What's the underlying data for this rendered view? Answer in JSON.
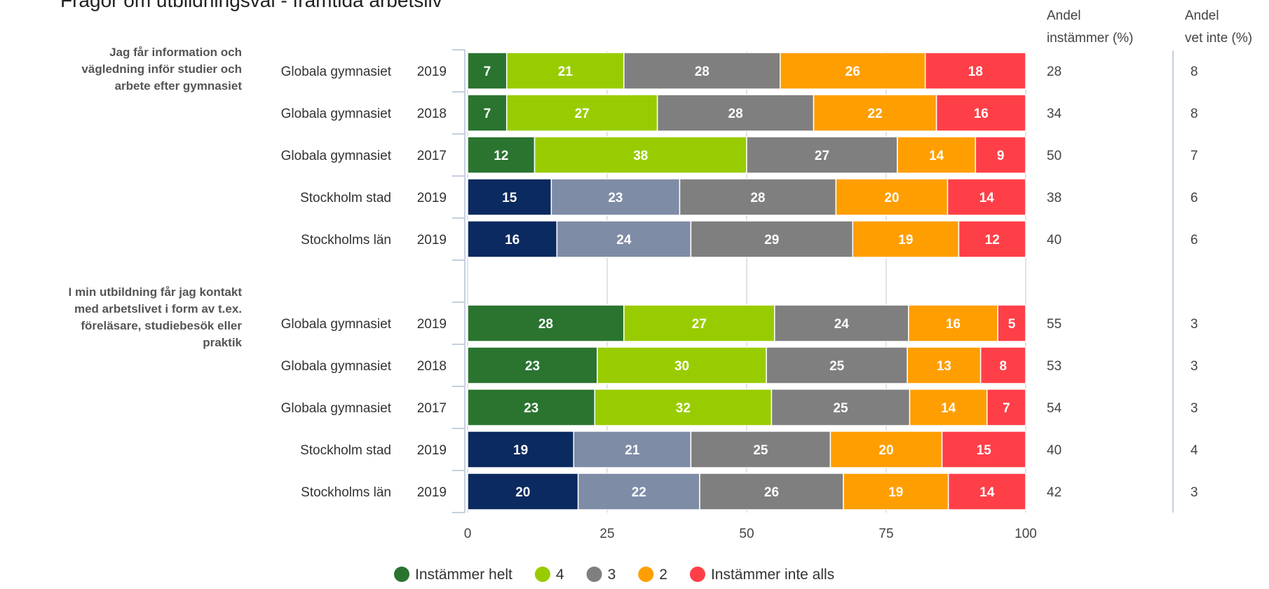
{
  "chart_data": {
    "type": "bar",
    "orientation": "horizontal",
    "stacked": true,
    "title": "Frågor om utbildningsval - framtida arbetsliv",
    "xlim": [
      0,
      100
    ],
    "xticks": [
      "0",
      "25",
      "50",
      "75",
      "100"
    ],
    "grid": true,
    "legend_placement": "bottom",
    "categories_legend": [
      {
        "name": "Instämmer helt",
        "color": "#2a7430"
      },
      {
        "name": "4",
        "color": "#99cc00"
      },
      {
        "name": "3",
        "color": "#7f7f7f"
      },
      {
        "name": "2",
        "color": "#ff9e00"
      },
      {
        "name": "Instämmer inte alls",
        "color": "#ff3f48"
      }
    ],
    "palettes": {
      "school": [
        "#2a7430",
        "#99cc00",
        "#7f7f7f",
        "#ff9e00",
        "#ff3f48"
      ],
      "region": [
        "#0b2a60",
        "#7f8ca6",
        "#7f7f7f",
        "#ff9e00",
        "#ff3f48"
      ]
    },
    "side_headers": [
      {
        "line1": "Andel",
        "line2": "instämmer (%)"
      },
      {
        "line1": "Andel",
        "line2": "vet inte (%)"
      }
    ],
    "groups": [
      {
        "question_lines": [
          "Jag får information och",
          "vägledning inför studier och",
          "arbete efter gymnasiet"
        ],
        "rows": [
          {
            "label": "Globala gymnasiet",
            "year": "2019",
            "palette": "school",
            "values": [
              7,
              21,
              28,
              26,
              18
            ],
            "andel_instammer": "28",
            "andel_vet_inte": "8"
          },
          {
            "label": "Globala gymnasiet",
            "year": "2018",
            "palette": "school",
            "values": [
              7,
              27,
              28,
              22,
              16
            ],
            "andel_instammer": "34",
            "andel_vet_inte": "8"
          },
          {
            "label": "Globala gymnasiet",
            "year": "2017",
            "palette": "school",
            "values": [
              12,
              38,
              27,
              14,
              9
            ],
            "andel_instammer": "50",
            "andel_vet_inte": "7"
          },
          {
            "label": "Stockholm stad",
            "year": "2019",
            "palette": "region",
            "values": [
              15,
              23,
              28,
              20,
              14
            ],
            "andel_instammer": "38",
            "andel_vet_inte": "6"
          },
          {
            "label": "Stockholms län",
            "year": "2019",
            "palette": "region",
            "values": [
              16,
              24,
              29,
              19,
              12
            ],
            "andel_instammer": "40",
            "andel_vet_inte": "6"
          }
        ]
      },
      {
        "question_lines": [
          "I min utbildning får jag kontakt",
          "med arbetslivet i form av t.ex.",
          "föreläsare, studiebesök eller",
          "praktik"
        ],
        "rows": [
          {
            "label": "Globala gymnasiet",
            "year": "2019",
            "palette": "school",
            "values": [
              28,
              27,
              24,
              16,
              5
            ],
            "andel_instammer": "55",
            "andel_vet_inte": "3"
          },
          {
            "label": "Globala gymnasiet",
            "year": "2018",
            "palette": "school",
            "values": [
              23,
              30,
              25,
              13,
              8
            ],
            "andel_instammer": "53",
            "andel_vet_inte": "3"
          },
          {
            "label": "Globala gymnasiet",
            "year": "2017",
            "palette": "school",
            "values": [
              23,
              32,
              25,
              14,
              7
            ],
            "andel_instammer": "54",
            "andel_vet_inte": "3"
          },
          {
            "label": "Stockholm stad",
            "year": "2019",
            "palette": "region",
            "values": [
              19,
              21,
              25,
              20,
              15
            ],
            "andel_instammer": "40",
            "andel_vet_inte": "4"
          },
          {
            "label": "Stockholms län",
            "year": "2019",
            "palette": "region",
            "values": [
              20,
              22,
              26,
              19,
              14
            ],
            "andel_instammer": "42",
            "andel_vet_inte": "3"
          }
        ]
      }
    ]
  }
}
